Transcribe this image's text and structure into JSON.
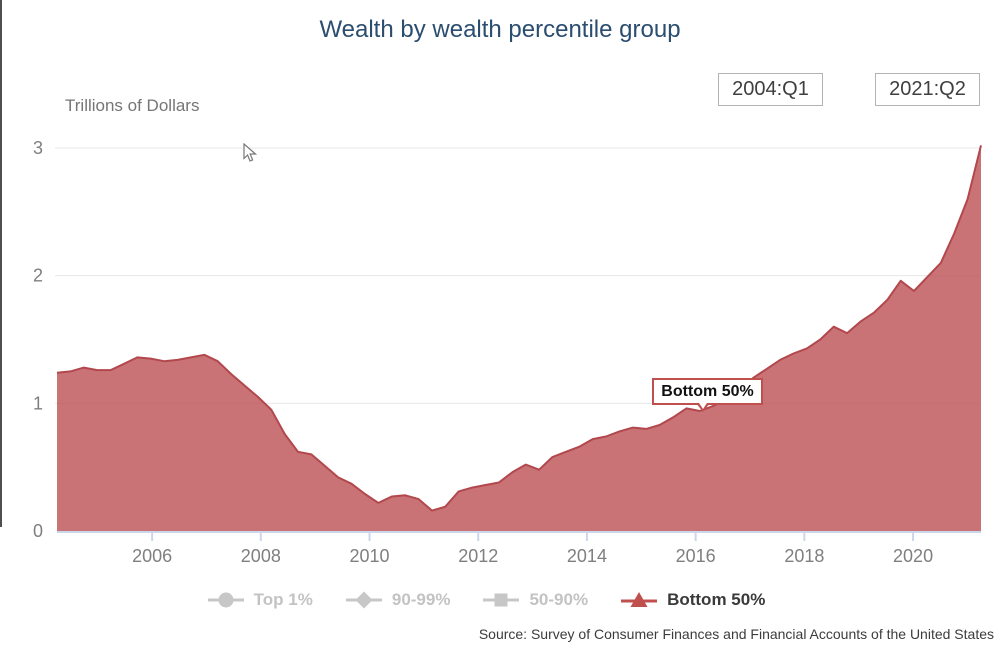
{
  "header": {
    "title": "Wealth by wealth percentile group"
  },
  "controls": {
    "start_period": "2004:Q1",
    "end_period": "2021:Q2"
  },
  "tooltip": {
    "label": "Bottom 50%"
  },
  "legend": {
    "position": "bottom",
    "items": [
      {
        "label": "Top 1%",
        "marker": "circle",
        "active": false
      },
      {
        "label": "90-99%",
        "marker": "diamond",
        "active": false
      },
      {
        "label": "50-90%",
        "marker": "square",
        "active": false
      },
      {
        "label": "Bottom 50%",
        "marker": "triangle",
        "active": true
      }
    ]
  },
  "source": {
    "text": "Source: Survey of Consumer Finances and Financial Accounts of the United States"
  },
  "colors": {
    "title": "#2b4d6f",
    "accent_red": "#c0504d",
    "series_fill": "#c05a5e",
    "series_line": "#b2484d",
    "gridline": "#e7e7e7",
    "axis_line": "#ccd6ea",
    "axis_text": "#7f7f7f",
    "legend_disabled": "#c7c7c7",
    "text_dark": "#3c3c3c"
  },
  "chart_data": {
    "type": "area",
    "title": "Wealth by wealth percentile group",
    "xlabel": "",
    "ylabel": "Trillions of Dollars",
    "ylim": [
      0,
      3
    ],
    "yticks": [
      0,
      1,
      2,
      3
    ],
    "xticks": [
      2006,
      2008,
      2010,
      2012,
      2014,
      2016,
      2018,
      2020
    ],
    "x_start": "2004:Q1",
    "x_end": "2021:Q2",
    "frequency": "quarterly",
    "grid": true,
    "legend_position": "bottom",
    "series": [
      {
        "name": "Top 1%",
        "visible": false
      },
      {
        "name": "90-99%",
        "visible": false
      },
      {
        "name": "50-90%",
        "visible": false
      },
      {
        "name": "Bottom 50%",
        "visible": true,
        "color": "#c0504d",
        "values": [
          1.24,
          1.25,
          1.28,
          1.26,
          1.26,
          1.31,
          1.36,
          1.35,
          1.33,
          1.34,
          1.36,
          1.38,
          1.33,
          1.23,
          1.14,
          1.05,
          0.95,
          0.76,
          0.62,
          0.6,
          0.51,
          0.42,
          0.37,
          0.29,
          0.22,
          0.27,
          0.28,
          0.25,
          0.16,
          0.19,
          0.31,
          0.34,
          0.36,
          0.38,
          0.46,
          0.52,
          0.48,
          0.58,
          0.62,
          0.66,
          0.72,
          0.74,
          0.78,
          0.81,
          0.8,
          0.83,
          0.89,
          0.96,
          0.94,
          0.98,
          1.03,
          1.1,
          1.2,
          1.27,
          1.34,
          1.39,
          1.43,
          1.5,
          1.6,
          1.55,
          1.64,
          1.71,
          1.81,
          1.96,
          1.88,
          1.99,
          2.1,
          2.33,
          2.6,
          3.02
        ]
      }
    ]
  }
}
